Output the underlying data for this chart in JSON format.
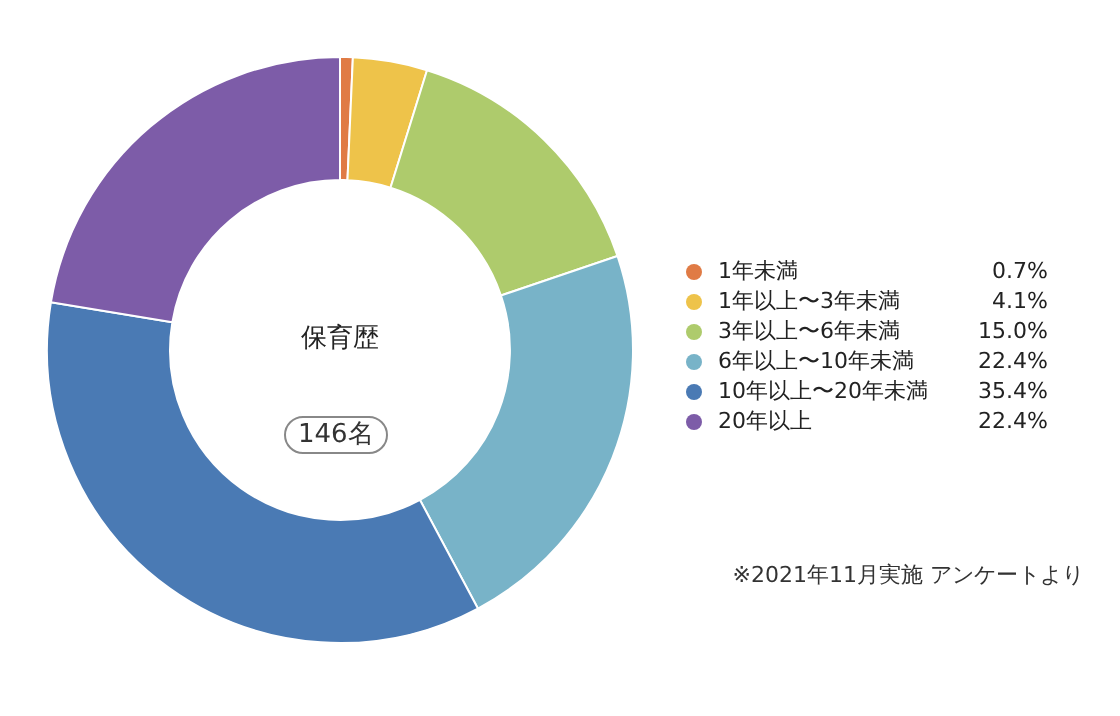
{
  "chart_data": {
    "type": "donut",
    "title": "保育歴",
    "subtitle": "146名",
    "categories": [
      "1年未満",
      "1年以上〜3年未満",
      "3年以上〜6年未満",
      "6年以上〜10年未満",
      "10年以上〜20年未満",
      "20年以上"
    ],
    "values": [
      0.7,
      4.1,
      15.0,
      22.4,
      35.4,
      22.4
    ],
    "value_labels": [
      "0.7%",
      "4.1%",
      "15.0%",
      "22.4%",
      "35.4%",
      "22.4%"
    ],
    "colors": [
      "#e07b45",
      "#eec34a",
      "#aecb6c",
      "#78b3c8",
      "#4a7ab4",
      "#7d5ca8"
    ],
    "legend": "right",
    "annotations": [
      "※2021年11月実施 アンケートより"
    ]
  }
}
